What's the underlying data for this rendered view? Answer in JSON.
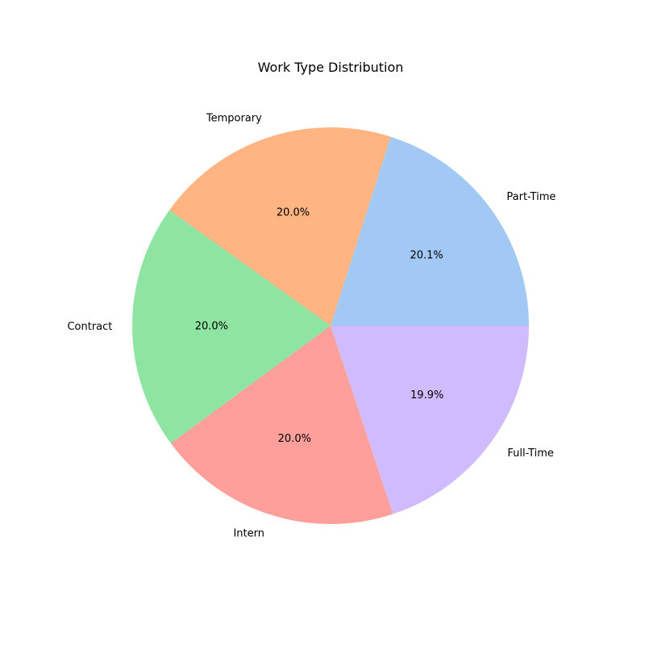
{
  "chart_data": {
    "type": "pie",
    "title": "Work Type Distribution",
    "categories": [
      "Part-Time",
      "Temporary",
      "Contract",
      "Intern",
      "Full-Time"
    ],
    "values": [
      20.1,
      20.0,
      20.0,
      20.0,
      19.9
    ],
    "value_labels": [
      "20.1%",
      "20.0%",
      "20.0%",
      "20.0%",
      "19.9%"
    ],
    "colors": [
      "#a1c9f4",
      "#ffb482",
      "#8de5a1",
      "#ff9f9b",
      "#d0bbff"
    ],
    "start_angle_deg": 0,
    "direction": "counterclockwise",
    "legend": "none"
  }
}
